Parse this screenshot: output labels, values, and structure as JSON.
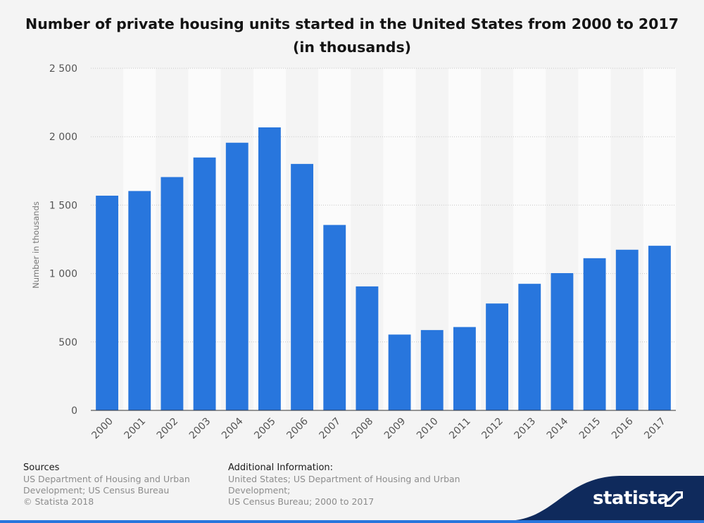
{
  "chart_data": {
    "type": "bar",
    "title": "Number of private housing units started in the United States from 2000 to 2017 (in thousands)",
    "xlabel": "",
    "ylabel": "Number in thousands",
    "ylim": [
      0,
      2500
    ],
    "yticks": [
      0,
      500,
      1000,
      1500,
      2000,
      2500
    ],
    "ytick_labels": [
      "0",
      "500",
      "1 000",
      "1 500",
      "2 000",
      "2 500"
    ],
    "categories": [
      "2000",
      "2001",
      "2002",
      "2003",
      "2004",
      "2005",
      "2006",
      "2007",
      "2008",
      "2009",
      "2010",
      "2011",
      "2012",
      "2013",
      "2014",
      "2015",
      "2016",
      "2017"
    ],
    "values": [
      1569,
      1603,
      1705,
      1848,
      1956,
      2068,
      1801,
      1355,
      906,
      554,
      587,
      609,
      781,
      925,
      1003,
      1112,
      1174,
      1203
    ],
    "bar_color": "#2876dd",
    "grid": true
  },
  "footer": {
    "sources_heading": "Sources",
    "sources_lines": [
      "US Department of Housing and Urban",
      "Development; US Census Bureau",
      "© Statista 2018"
    ],
    "additional_heading": "Additional Information:",
    "additional_lines": [
      "United States; US Department of Housing and Urban Development;",
      "US Census Bureau; 2000 to 2017"
    ]
  },
  "brand": {
    "name": "statista",
    "color": "#0f2a5c"
  }
}
